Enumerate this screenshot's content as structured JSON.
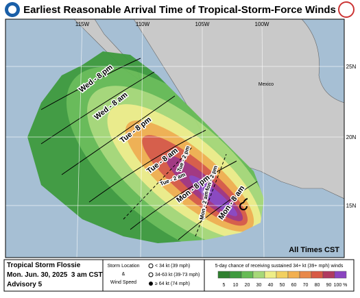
{
  "header": {
    "title": "Earliest Reasonable Arrival Time of Tropical-Storm-Force Winds"
  },
  "map": {
    "lon_labels": [
      "115W",
      "110W",
      "105W",
      "100W"
    ],
    "lat_labels": [
      "25N",
      "20N",
      "15N"
    ],
    "country": "Mexico",
    "note": "All Times CST",
    "time_labels": [
      "Wed - 8 pm",
      "Wed - 8 am",
      "Tue - 8 pm",
      "Tue - 8 am",
      "Tue - 2 pm",
      "Tue - 2 am",
      "Mon - 8 pm",
      "Mon - 2 pm",
      "Mon - 2 am",
      "Mon - 8 am"
    ]
  },
  "legend": {
    "storm": "Tropical Storm Flossie",
    "date": "Mon. Jun. 30, 2025  3 am CST",
    "advisory": "Advisory 5",
    "location_title": [
      "Storm Location",
      "&",
      "Wind Speed"
    ],
    "speeds": [
      "< 34 kt (39 mph)",
      "34-63 kt (39-73 mph)",
      "≥ 64 kt (74 mph)"
    ],
    "scale_title": "5-day chance of receiving sustained 34+ kt (39+ mph) winds",
    "scale": [
      "5",
      "10",
      "20",
      "30",
      "40",
      "50",
      "60",
      "70",
      "80",
      "90",
      "100 %"
    ]
  }
}
